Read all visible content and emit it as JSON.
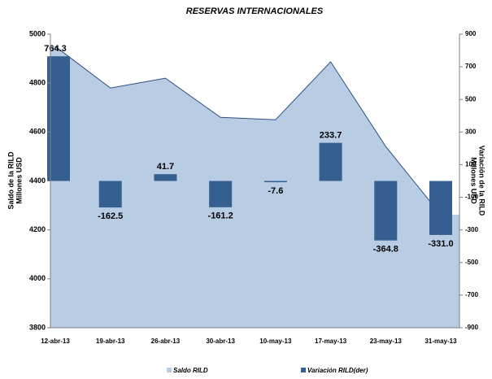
{
  "chart_data": {
    "type": "area-bar",
    "title": "RESERVAS INTERNACIONALES",
    "ylabel": [
      "Saldo de la RILD",
      "Millones USD"
    ],
    "y2label": [
      "Variación de la RILD",
      "Millones USD"
    ],
    "categories": [
      "12-abr-13",
      "19-abr-13",
      "26-abr-13",
      "30-abr-13",
      "10-may-13",
      "17-may-13",
      "23-may-13",
      "31-may-13"
    ],
    "series": [
      {
        "name": "Saldo RILD",
        "type": "area",
        "color": "#b8cce4",
        "line_color": "#2e4e7e",
        "values": [
          4950,
          4780,
          4820,
          4660,
          4650,
          4887,
          4541,
          4262
        ]
      },
      {
        "name": "Variación RILD(der)",
        "type": "bar",
        "axis": "y2",
        "color": "#365f91",
        "values": [
          764.3,
          -162.5,
          41.7,
          -161.2,
          -7.6,
          233.7,
          -364.8,
          -331.0
        ],
        "value_labels": [
          "764.3",
          "-162.5",
          "41.7",
          "-161.2",
          "-7.6",
          "233.7",
          "-364.8",
          "-331.0"
        ]
      }
    ],
    "ylim": [
      3800,
      5000
    ],
    "yticks": [
      3800,
      4000,
      4200,
      4400,
      4600,
      4800,
      5000
    ],
    "y2lim": [
      -900,
      900
    ],
    "y2ticks": [
      -900,
      -700,
      -500,
      -300,
      -100,
      100,
      300,
      500,
      700,
      900
    ],
    "legend": "bottom",
    "grid": false
  }
}
